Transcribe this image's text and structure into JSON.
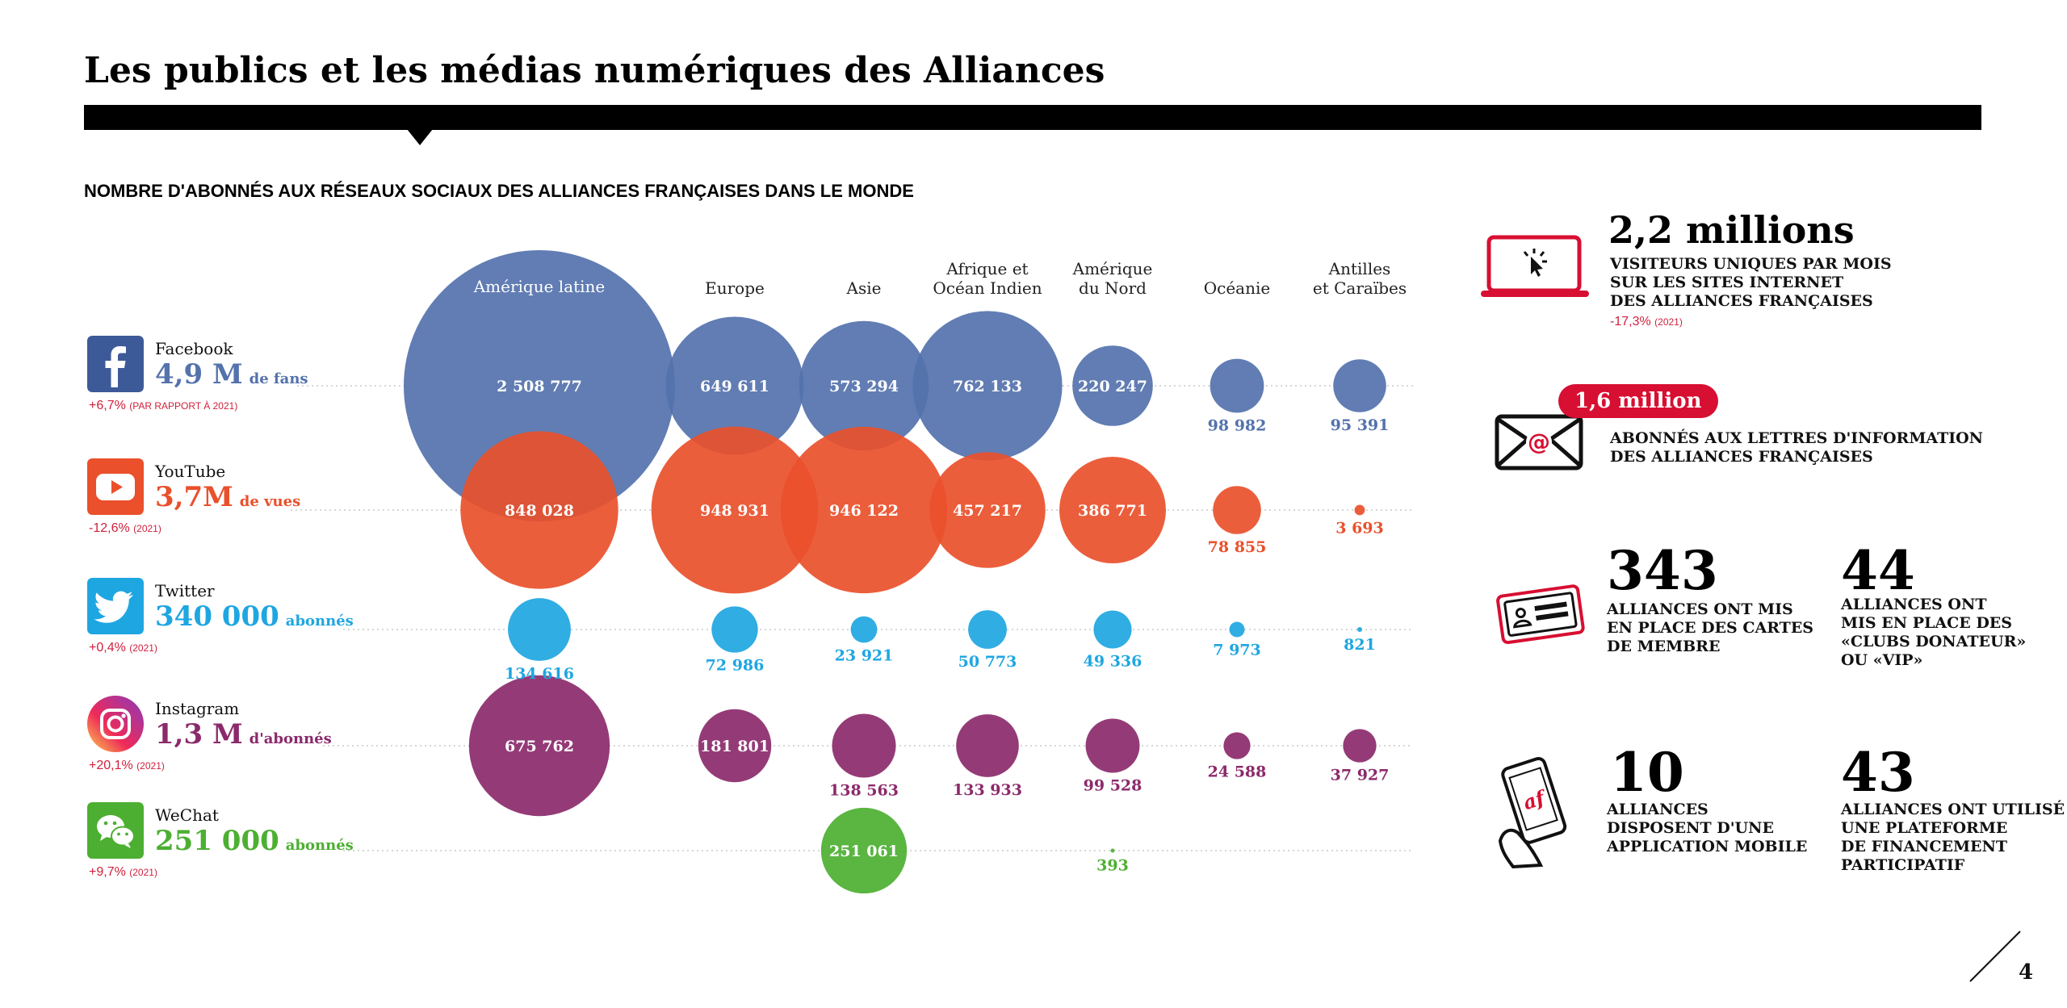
{
  "page": {
    "title": "Les publics et les médias numériques des Alliances",
    "subtitle": "NOMBRE D'ABONNÉS AUX RÉSEAUX SOCIAUX DES ALLIANCES FRANÇAISES DANS LE MONDE",
    "page_number": "4"
  },
  "networks": [
    {
      "name": "Facebook",
      "total": "4,9 M",
      "unit": "de fans",
      "change": "+6,7%",
      "change_note": "(PAR RAPPORT À 2021)",
      "color": "#5472ac",
      "icon": "facebook-icon"
    },
    {
      "name": "YouTube",
      "total": "3,7M",
      "unit": "de vues",
      "change": "-12,6%",
      "change_note": "(2021)",
      "color": "#e9502b",
      "icon": "youtube-icon"
    },
    {
      "name": "Twitter",
      "total": "340 000",
      "unit": "abonnés",
      "change": "+0,4%",
      "change_note": "(2021)",
      "color": "#1ea6e1",
      "icon": "twitter-icon"
    },
    {
      "name": "Instagram",
      "total": "1,3 M",
      "unit": "d'abonnés",
      "change": "+20,1%",
      "change_note": "(2021)",
      "color": "#8b2a6b",
      "icon": "instagram-icon"
    },
    {
      "name": "WeChat",
      "total": "251 000",
      "unit": "abonnés",
      "change": "+9,7%",
      "change_note": "(2021)",
      "color": "#4caf31",
      "icon": "wechat-icon"
    }
  ],
  "chart_data": {
    "type": "bubble",
    "title": "NOMBRE D'ABONNÉS AUX RÉSEAUX SOCIAUX DES ALLIANCES FRANÇAISES DANS LE MONDE",
    "regions": [
      "Amérique latine",
      "Europe",
      "Asie",
      "Afrique et\nOcéan Indien",
      "Amérique\ndu Nord",
      "Océanie",
      "Antilles\net Caraïbes"
    ],
    "series": [
      {
        "name": "Facebook",
        "color": "#5472ac",
        "values": [
          2508777,
          649611,
          573294,
          762133,
          220247,
          98982,
          95391
        ],
        "labels": [
          "2 508 777",
          "649 611",
          "573 294",
          "762 133",
          "220 247",
          "98 982",
          "95 391"
        ]
      },
      {
        "name": "YouTube",
        "color": "#e9502b",
        "values": [
          848028,
          948931,
          946122,
          457217,
          386771,
          78855,
          3693
        ],
        "labels": [
          "848 028",
          "948 931",
          "946 122",
          "457 217",
          "386 771",
          "78 855",
          "3 693"
        ]
      },
      {
        "name": "Twitter",
        "color": "#1ea6e1",
        "values": [
          134616,
          72986,
          23921,
          50773,
          49336,
          7973,
          821
        ],
        "labels": [
          "134 616",
          "72 986",
          "23 921",
          "50 773",
          "49 336",
          "7 973",
          "821"
        ]
      },
      {
        "name": "Instagram",
        "color": "#8b2a6b",
        "values": [
          675762,
          181801,
          138563,
          133933,
          99528,
          24588,
          37927
        ],
        "labels": [
          "675 762",
          "181 801",
          "138 563",
          "133 933",
          "99 528",
          "24 588",
          "37 927"
        ]
      },
      {
        "name": "WeChat",
        "color": "#4caf31",
        "values": [
          null,
          null,
          251061,
          null,
          393,
          null,
          null
        ],
        "labels": [
          "",
          "",
          "251 061",
          "",
          "393",
          "",
          ""
        ]
      }
    ]
  },
  "stats": {
    "visitors": {
      "big": "2,2 millions",
      "text": [
        "VISITEURS UNIQUES PAR MOIS",
        "SUR LES SITES INTERNET",
        "DES ALLIANCES FRANÇAISES"
      ],
      "change": "-17,3%",
      "change_note": "(2021)",
      "icon": "laptop-cursor-icon"
    },
    "newsletter": {
      "big": "1,6 million",
      "text": [
        "ABONNÉS AUX LETTRES D'INFORMATION",
        "DES ALLIANCES FRANÇAISES"
      ],
      "icon": "email-at-icon"
    },
    "cards": {
      "big": "343",
      "text": [
        "ALLIANCES ONT MIS",
        "EN PLACE DES CARTES",
        "DE MEMBRE"
      ],
      "icon": "member-card-icon"
    },
    "clubs": {
      "big": "44",
      "text": [
        "ALLIANCES ONT",
        "MIS EN PLACE DES",
        "«CLUBS DONATEUR»",
        "OU «VIP»"
      ]
    },
    "app": {
      "big": "10",
      "text": [
        "ALLIANCES",
        "DISPOSENT D'UNE",
        "APPLICATION MOBILE"
      ],
      "icon": "mobile-app-icon"
    },
    "crowdfunding": {
      "big": "43",
      "text": [
        "ALLIANCES ONT UTILISÉ",
        "UNE PLATEFORME",
        "DE FINANCEMENT",
        "PARTICIPATIF"
      ]
    }
  }
}
